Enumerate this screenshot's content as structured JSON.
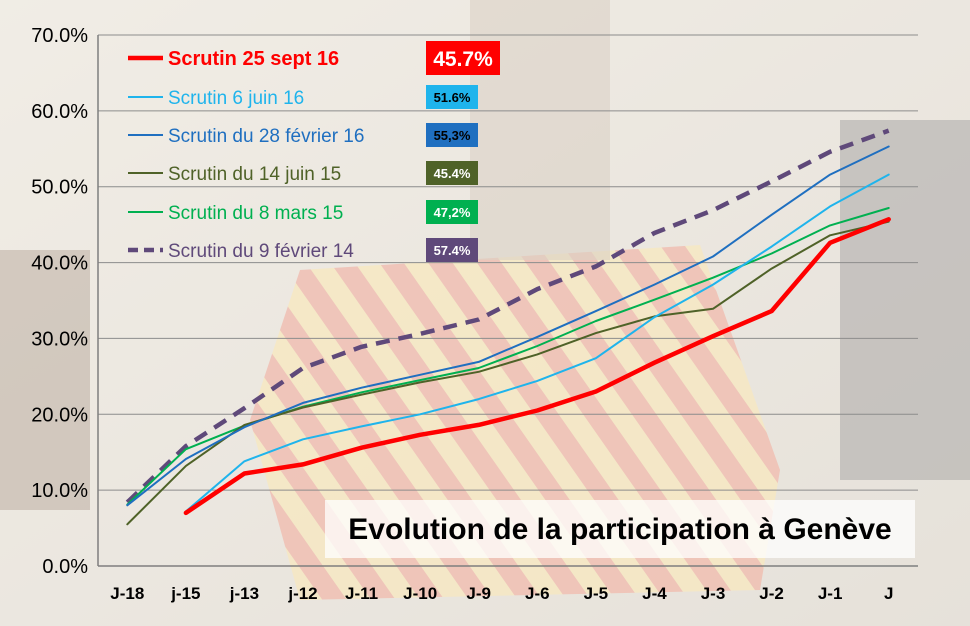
{
  "chart_data": {
    "type": "line",
    "title": "Evolution de la participation à Genève",
    "xlabel": "",
    "ylabel": "",
    "categories": [
      "J-18",
      "j-15",
      "j-13",
      "j-12",
      "J-11",
      "J-10",
      "J-9",
      "J-6",
      "J-5",
      "J-4",
      "J-3",
      "J-2",
      "J-1",
      "J"
    ],
    "y_ticks": [
      "0.0%",
      "10.0%",
      "20.0%",
      "30.0%",
      "40.0%",
      "50.0%",
      "60.0%",
      "70.0%"
    ],
    "ylim": [
      0,
      70
    ],
    "grid": true,
    "legend_position": "top-left",
    "series": [
      {
        "name": "Scrutin 25 sept 16",
        "badge": "45.7%",
        "color": "#ff0000",
        "badge_color": "#ff0000",
        "dashed": false,
        "width": "thick",
        "values": [
          null,
          7.0,
          12.2,
          13.4,
          15.6,
          17.3,
          18.6,
          20.5,
          23.0,
          26.8,
          30.3,
          33.6,
          42.6,
          45.7
        ]
      },
      {
        "name": "Scrutin 6 juin 16",
        "badge": "51.6%",
        "color": "#1fb4ec",
        "badge_color": "#1fb4ec",
        "dashed": false,
        "width": "thin",
        "values": [
          null,
          7.2,
          13.8,
          16.7,
          18.4,
          20.0,
          22.0,
          24.4,
          27.4,
          32.8,
          37.1,
          42.1,
          47.4,
          51.6
        ]
      },
      {
        "name": "Scrutin du 28 février 16",
        "badge": "55,3%",
        "color": "#1f6fc0",
        "badge_color": "#1f6fc0",
        "dashed": false,
        "width": "thin",
        "values": [
          8.0,
          14.1,
          18.3,
          21.5,
          23.5,
          25.2,
          26.9,
          30.2,
          33.6,
          37.1,
          40.8,
          46.3,
          51.6,
          55.3
        ]
      },
      {
        "name": "Scrutin du 14 juin 15",
        "badge": "45.4%",
        "color": "#4f6228",
        "badge_color": "#4f6228",
        "dashed": false,
        "width": "thin",
        "values": [
          5.5,
          13.2,
          18.6,
          20.9,
          22.6,
          24.2,
          25.6,
          27.9,
          30.7,
          32.9,
          33.9,
          39.2,
          43.6,
          45.4
        ]
      },
      {
        "name": "Scrutin du 8 mars 15",
        "badge": "47,2%",
        "color": "#00b050",
        "badge_color": "#00b050",
        "dashed": false,
        "width": "thin",
        "values": [
          8.1,
          15.4,
          18.5,
          21.0,
          22.9,
          24.5,
          26.1,
          29.0,
          32.3,
          35.1,
          38.0,
          41.2,
          44.9,
          47.2
        ]
      },
      {
        "name": "Scrutin du 9 février 14",
        "badge": "57.4%",
        "color": "#5f497a",
        "badge_color": "#5f497a",
        "dashed": true,
        "width": "thick",
        "values": [
          8.4,
          15.8,
          20.8,
          26.1,
          28.9,
          30.6,
          32.5,
          36.5,
          39.5,
          43.9,
          46.9,
          50.7,
          54.6,
          57.4
        ]
      }
    ]
  }
}
